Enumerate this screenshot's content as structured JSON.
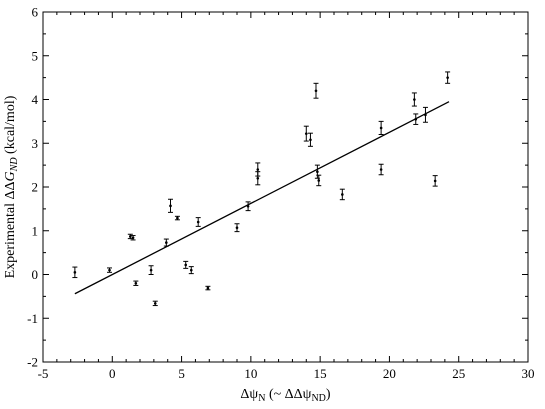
{
  "chart_data": {
    "type": "scatter",
    "xlabel": {
      "psi": "Δψ",
      "psi_sub": "N",
      "paren_open": " (~ ΔΔψ",
      "paren_sub": "ND",
      "paren_close": ")"
    },
    "ylabel": {
      "prefix": "Experimental  ΔΔ",
      "g": "G",
      "sub": "ND",
      "unit": "  (kcal/mol)"
    },
    "xlim": [
      -5,
      30
    ],
    "ylim": [
      -2,
      6
    ],
    "x_ticks": [
      -5,
      0,
      5,
      10,
      15,
      20,
      25,
      30
    ],
    "y_ticks": [
      -2,
      -1,
      0,
      1,
      2,
      3,
      4,
      5,
      6
    ],
    "grid": false,
    "fit_line": {
      "x": [
        -2.7,
        24.3
      ],
      "y": [
        -0.44,
        3.95
      ]
    },
    "points": [
      {
        "x": -2.7,
        "y": 0.05,
        "err": 0.12
      },
      {
        "x": -0.2,
        "y": 0.1,
        "err": 0.05
      },
      {
        "x": 1.3,
        "y": 0.87,
        "err": 0.05
      },
      {
        "x": 1.5,
        "y": 0.84,
        "err": 0.05
      },
      {
        "x": 1.7,
        "y": -0.2,
        "err": 0.05
      },
      {
        "x": 2.8,
        "y": 0.1,
        "err": 0.1
      },
      {
        "x": 3.1,
        "y": -0.66,
        "err": 0.05
      },
      {
        "x": 3.9,
        "y": 0.73,
        "err": 0.08
      },
      {
        "x": 4.2,
        "y": 1.57,
        "err": 0.15
      },
      {
        "x": 4.7,
        "y": 1.29,
        "err": 0.04
      },
      {
        "x": 5.3,
        "y": 0.22,
        "err": 0.08
      },
      {
        "x": 5.7,
        "y": 0.1,
        "err": 0.08
      },
      {
        "x": 6.2,
        "y": 1.2,
        "err": 0.1
      },
      {
        "x": 6.9,
        "y": -0.31,
        "err": 0.04
      },
      {
        "x": 9.0,
        "y": 1.07,
        "err": 0.09
      },
      {
        "x": 9.8,
        "y": 1.56,
        "err": 0.1
      },
      {
        "x": 10.5,
        "y": 2.2,
        "err": 0.15
      },
      {
        "x": 10.5,
        "y": 2.4,
        "err": 0.15
      },
      {
        "x": 14.0,
        "y": 3.22,
        "err": 0.17
      },
      {
        "x": 14.3,
        "y": 3.08,
        "err": 0.15
      },
      {
        "x": 14.7,
        "y": 4.2,
        "err": 0.17
      },
      {
        "x": 14.8,
        "y": 2.35,
        "err": 0.15
      },
      {
        "x": 14.9,
        "y": 2.15,
        "err": 0.12
      },
      {
        "x": 16.6,
        "y": 1.83,
        "err": 0.12
      },
      {
        "x": 19.4,
        "y": 3.35,
        "err": 0.15
      },
      {
        "x": 19.4,
        "y": 2.4,
        "err": 0.12
      },
      {
        "x": 21.8,
        "y": 4.0,
        "err": 0.15
      },
      {
        "x": 21.9,
        "y": 3.55,
        "err": 0.12
      },
      {
        "x": 22.6,
        "y": 3.65,
        "err": 0.17
      },
      {
        "x": 23.3,
        "y": 2.14,
        "err": 0.12
      },
      {
        "x": 24.2,
        "y": 4.5,
        "err": 0.13
      }
    ]
  }
}
